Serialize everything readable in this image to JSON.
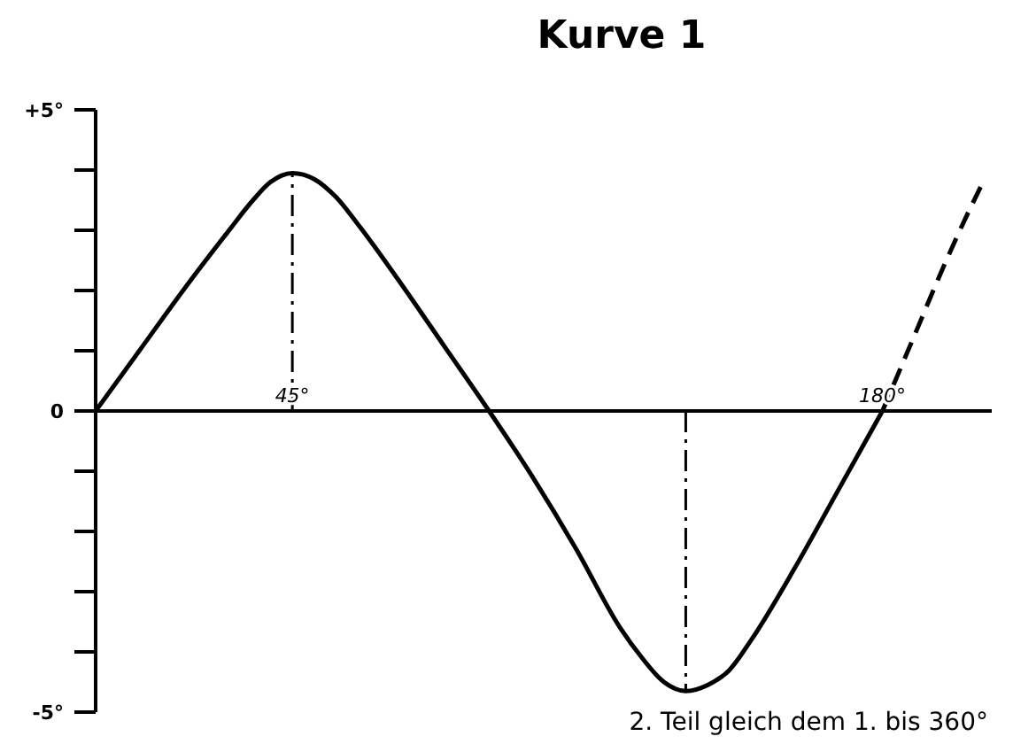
{
  "chart_data": {
    "type": "line",
    "title": "Kurve 1",
    "xlim": [
      0,
      205
    ],
    "xticks": [
      {
        "value": 45,
        "label": "45°"
      },
      {
        "value": 180,
        "label": "180°"
      }
    ],
    "ylim": [
      -5,
      5
    ],
    "yticks": [
      {
        "value": 5,
        "label": "+5°"
      },
      {
        "value": 4,
        "label": null
      },
      {
        "value": 3,
        "label": null
      },
      {
        "value": 2,
        "label": null
      },
      {
        "value": 1,
        "label": null
      },
      {
        "value": 0,
        "label": "0"
      },
      {
        "value": -1,
        "label": null
      },
      {
        "value": -2,
        "label": null
      },
      {
        "value": -3,
        "label": null
      },
      {
        "value": -4,
        "label": null
      },
      {
        "value": -5,
        "label": "-5°"
      }
    ],
    "series": [
      {
        "color": "#000000",
        "line_style": "solid",
        "x": [
          0,
          10,
          20,
          30,
          36,
          40,
          45,
          50,
          55,
          60,
          70,
          80,
          90,
          100,
          110,
          120,
          125,
          130,
          135,
          140,
          145,
          150,
          160,
          170,
          180
        ],
        "values": [
          0,
          1.0,
          2.0,
          2.95,
          3.5,
          3.8,
          3.95,
          3.85,
          3.55,
          3.1,
          2.1,
          1.05,
          0,
          -1.1,
          -2.3,
          -3.6,
          -4.1,
          -4.5,
          -4.65,
          -4.55,
          -4.3,
          -3.8,
          -2.6,
          -1.3,
          0
        ]
      },
      {
        "color": "#000000",
        "line_style": "dashed",
        "x": [
          180,
          187,
          194,
          199,
          203
        ],
        "values": [
          0,
          1.2,
          2.4,
          3.2,
          3.8
        ]
      }
    ],
    "ref_lines": [
      {
        "axis": "x",
        "value": 45,
        "label": null,
        "line_style": "dashed",
        "color": "#000000"
      },
      {
        "axis": "x",
        "value": 135,
        "label": null,
        "line_style": "dashed",
        "color": "#000000"
      }
    ],
    "grid": false,
    "marker": "none",
    "annotations": [
      "2. Teil gleich dem 1. bis 360°"
    ]
  }
}
